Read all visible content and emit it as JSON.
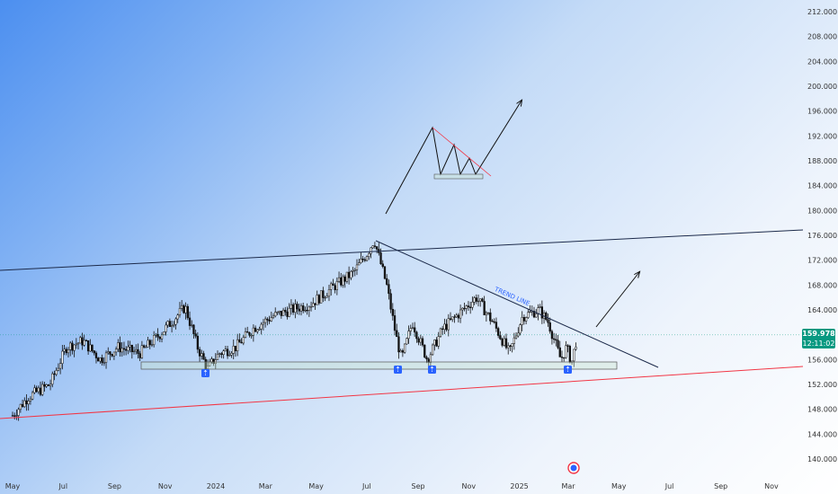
{
  "chart_data": {
    "type": "candlestick",
    "title": "",
    "xlabel": "",
    "ylabel": "",
    "ylim": [
      138,
      214
    ],
    "grid": false,
    "x_tick_labels": [
      "May",
      "Jul",
      "Sep",
      "Nov",
      "2024",
      "Mar",
      "May",
      "Jul",
      "Sep",
      "Nov",
      "2025",
      "Mar",
      "May",
      "Jul",
      "Sep",
      "Nov"
    ],
    "y_tick_labels": [
      "212.000",
      "208.000",
      "204.000",
      "200.000",
      "196.000",
      "192.000",
      "188.000",
      "184.000",
      "180.000",
      "176.000",
      "172.000",
      "168.000",
      "164.000",
      "156.000",
      "152.000",
      "148.000",
      "144.000",
      "140.000"
    ],
    "y_tick_values": [
      212,
      208,
      204,
      200,
      196,
      192,
      188,
      184,
      180,
      176,
      172,
      168,
      164,
      156,
      152,
      148,
      144,
      140
    ],
    "price_keypoints": [
      [
        "2023-05-01",
        147
      ],
      [
        "2023-05-20",
        150
      ],
      [
        "2023-06-15",
        152
      ],
      [
        "2023-07-05",
        158
      ],
      [
        "2023-07-25",
        159
      ],
      [
        "2023-08-15",
        156
      ],
      [
        "2023-09-05",
        158
      ],
      [
        "2023-10-01",
        157
      ],
      [
        "2023-10-25",
        160
      ],
      [
        "2023-11-15",
        163
      ],
      [
        "2023-11-25",
        164.5
      ],
      [
        "2023-12-10",
        158
      ],
      [
        "2023-12-22",
        154.5
      ],
      [
        "2024-01-05",
        157
      ],
      [
        "2024-01-25",
        158
      ],
      [
        "2024-02-15",
        161
      ],
      [
        "2024-03-10",
        163
      ],
      [
        "2024-04-01",
        164
      ],
      [
        "2024-04-25",
        165
      ],
      [
        "2024-05-25",
        168
      ],
      [
        "2024-06-15",
        170
      ],
      [
        "2024-07-01",
        173
      ],
      [
        "2024-07-10",
        175.3
      ],
      [
        "2024-07-25",
        168
      ],
      [
        "2024-08-05",
        160
      ],
      [
        "2024-08-12",
        156
      ],
      [
        "2024-08-25",
        162
      ],
      [
        "2024-09-12",
        156
      ],
      [
        "2024-10-01",
        161
      ],
      [
        "2024-10-25",
        164
      ],
      [
        "2024-11-10",
        166
      ],
      [
        "2024-11-30",
        162
      ],
      [
        "2024-12-20",
        157
      ],
      [
        "2025-01-05",
        163
      ],
      [
        "2025-01-25",
        164
      ],
      [
        "2025-02-05",
        162
      ],
      [
        "2025-02-20",
        156
      ],
      [
        "2025-02-27",
        158
      ],
      [
        "2025-03-05",
        155.5
      ],
      [
        "2025-03-12",
        160
      ]
    ],
    "last_price": "159.978",
    "countdown": "12:11:02",
    "annotations": {
      "trend_line_label": "TREND LINE"
    }
  },
  "colors": {
    "up": "#089981",
    "down": "#f23645",
    "candle": "#111111",
    "trend": "#1c2a4a",
    "support": "#f23645",
    "price_tag": "#089981",
    "badge": "#2962ff"
  }
}
